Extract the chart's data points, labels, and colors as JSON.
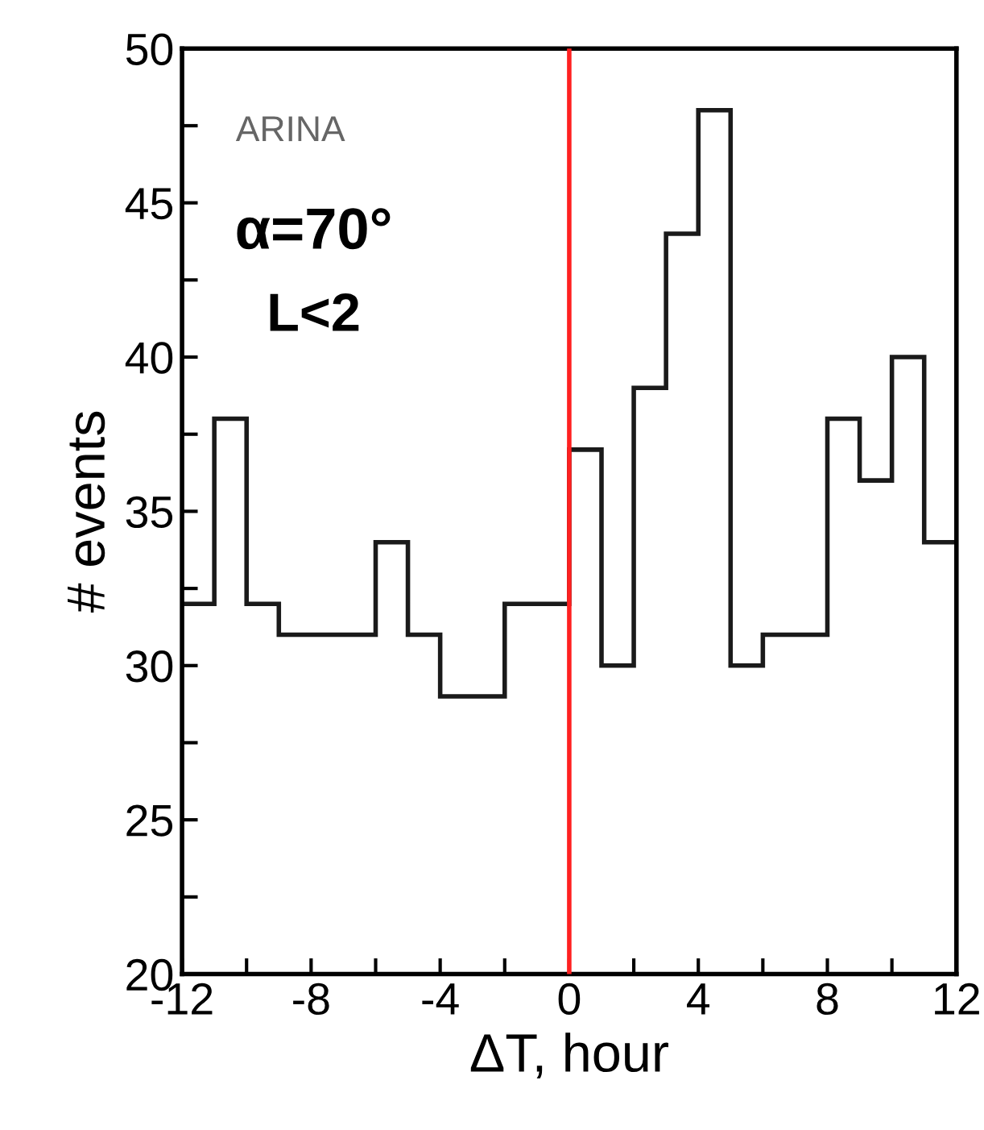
{
  "chart_data": {
    "type": "histogram",
    "xlabel": "ΔT, hour",
    "ylabel": "# events",
    "bins": [
      -12,
      -11,
      -10,
      -9,
      -8,
      -7,
      -6,
      -5,
      -4,
      -3,
      -2,
      -1,
      0,
      1,
      2,
      3,
      4,
      5,
      6,
      7,
      8,
      9,
      10,
      11,
      12
    ],
    "values": [
      32,
      38,
      32,
      31,
      31,
      31,
      34,
      31,
      29,
      29,
      32,
      32,
      37,
      30,
      39,
      44,
      48,
      30,
      31,
      31,
      38,
      36,
      40,
      34
    ],
    "color": "#1a1a1a",
    "xlim": [
      -12,
      12
    ],
    "xticks": [
      -12,
      {
        "value": -10,
        "label": null
      },
      -8,
      {
        "value": -6,
        "label": null
      },
      -4,
      {
        "value": -2,
        "label": null
      },
      0,
      {
        "value": 2,
        "label": null
      },
      4,
      {
        "value": 6,
        "label": null
      },
      8,
      {
        "value": 10,
        "label": null
      },
      12
    ],
    "ylim": [
      20,
      50
    ],
    "yticks": [
      20,
      {
        "value": 22.5,
        "label": null
      },
      25,
      {
        "value": 27.5,
        "label": null
      },
      30,
      {
        "value": 32.5,
        "label": null
      },
      35,
      {
        "value": 37.5,
        "label": null
      },
      40,
      {
        "value": 42.5,
        "label": null
      },
      45,
      {
        "value": 47.5,
        "label": null
      },
      50
    ],
    "ref_lines": [
      {
        "axis": "x",
        "value": 0,
        "color": "#ff2020"
      }
    ],
    "annotations": [
      "ARINA",
      "α=70°",
      "L<2"
    ],
    "grid": false,
    "legend": false
  }
}
